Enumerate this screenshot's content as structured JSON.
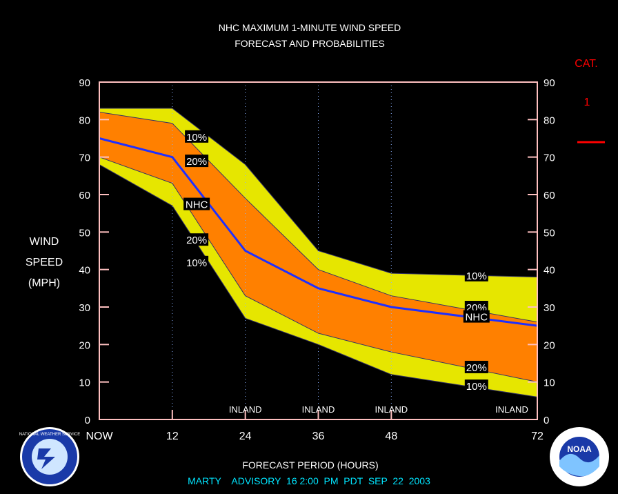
{
  "title_line1": "NHC MAXIMUM 1-MINUTE WIND SPEED",
  "title_line2": "FORECAST AND PROBABILITIES",
  "ylabel_lines": [
    "WIND",
    "SPEED",
    "(MPH)"
  ],
  "xlabel": "FORECAST PERIOD (HOURS)",
  "advisory": "MARTY    ADVISORY  16 2:00  PM  PDT  SEP  22  2003",
  "cat_label": "CAT.",
  "cat_value": "1",
  "left_logo": "NATIONAL WEATHER SERVICE",
  "right_logo": "NOAA",
  "colors": {
    "band10": "#e6e600",
    "band20": "#ff8000",
    "nhc": "#1f2fff",
    "cat": "#ff0000",
    "axis": "#ffc0c0",
    "advisory": "#00e5ff"
  },
  "chart_data": {
    "type": "area",
    "x_tick_labels": [
      "NOW",
      "12",
      "24",
      "36",
      "48",
      "72"
    ],
    "x_tick_values": [
      0,
      12,
      24,
      36,
      48,
      72
    ],
    "y_ticks": [
      0,
      10,
      20,
      30,
      40,
      50,
      60,
      70,
      80,
      90
    ],
    "xlim": [
      0,
      72
    ],
    "ylim": [
      0,
      90
    ],
    "x": [
      0,
      12,
      24,
      36,
      48,
      72
    ],
    "series": [
      {
        "name": "10%",
        "role": "upper10",
        "values": [
          83,
          83,
          68,
          45,
          39,
          38
        ]
      },
      {
        "name": "20%",
        "role": "upper20",
        "values": [
          82,
          79,
          59,
          40,
          33,
          26
        ]
      },
      {
        "name": "NHC",
        "role": "nhc",
        "values": [
          75,
          70,
          45,
          35,
          30,
          25
        ]
      },
      {
        "name": "20%",
        "role": "lower20",
        "values": [
          70,
          63,
          33,
          23,
          18,
          10
        ]
      },
      {
        "name": "10%",
        "role": "lower10",
        "values": [
          68,
          57,
          27,
          20,
          12,
          6
        ]
      }
    ],
    "inland_labels": [
      "INLAND",
      "INLAND",
      "INLAND",
      "INLAND"
    ],
    "inland_at_hours": [
      24,
      36,
      48,
      72
    ],
    "band_labels": [
      {
        "text": "10%",
        "x": 16,
        "y": 75.5
      },
      {
        "text": "20%",
        "x": 16,
        "y": 69
      },
      {
        "text": "NHC",
        "x": 16,
        "y": 57.5
      },
      {
        "text": "20%",
        "x": 16,
        "y": 48
      },
      {
        "text": "10%",
        "x": 16,
        "y": 42
      },
      {
        "text": "10%",
        "x": 62,
        "y": 38.5
      },
      {
        "text": "20%",
        "x": 62,
        "y": 30
      },
      {
        "text": "NHC",
        "x": 62,
        "y": 27.5
      },
      {
        "text": "20%",
        "x": 62,
        "y": 14
      },
      {
        "text": "10%",
        "x": 62,
        "y": 9
      }
    ]
  }
}
